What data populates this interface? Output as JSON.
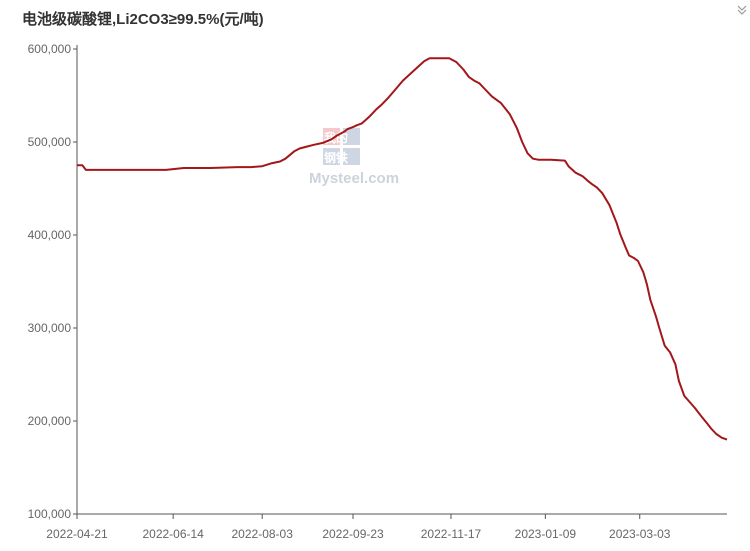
{
  "title": "电池级碳酸锂,Li2CO3≥99.5%(元/吨)",
  "watermark": {
    "line1": "我的",
    "line2": "钢铁",
    "line3": "Mysteel.com"
  },
  "icons": {
    "expand": "chevron-expand-icon"
  },
  "colors": {
    "series": "#a3171b",
    "axis": "#555555",
    "tick_text": "#666666"
  },
  "chart_data": {
    "type": "line",
    "title": "电池级碳酸锂,Li2CO3≥99.5%(元/吨)",
    "ylim": [
      100000,
      600000
    ],
    "xlim": [
      "2022-04-21",
      "2023-04-21"
    ],
    "y_ticks": [
      100000,
      200000,
      300000,
      400000,
      500000,
      600000
    ],
    "y_tick_labels": [
      "100,000",
      "200,000",
      "300,000",
      "400,000",
      "500,000",
      "600,000"
    ],
    "x_ticks": [
      "2022-04-21",
      "2022-06-14",
      "2022-08-03",
      "2022-09-23",
      "2022-11-17",
      "2023-01-09",
      "2023-03-03"
    ],
    "grid": false,
    "series": [
      {
        "x": [
          "2022-04-21",
          "2022-04-24",
          "2022-04-26",
          "2022-05-10",
          "2022-05-30",
          "2022-06-10",
          "2022-06-20",
          "2022-07-05",
          "2022-07-20",
          "2022-07-28",
          "2022-08-03",
          "2022-08-08",
          "2022-08-13",
          "2022-08-16",
          "2022-08-21",
          "2022-08-24",
          "2022-08-28",
          "2022-09-01",
          "2022-09-06",
          "2022-09-11",
          "2022-09-14",
          "2022-09-18",
          "2022-09-20",
          "2022-09-23",
          "2022-09-25",
          "2022-09-28",
          "2022-10-02",
          "2022-10-06",
          "2022-10-09",
          "2022-10-13",
          "2022-10-17",
          "2022-10-21",
          "2022-10-25",
          "2022-10-29",
          "2022-11-02",
          "2022-11-05",
          "2022-11-07",
          "2022-11-12",
          "2022-11-16",
          "2022-11-20",
          "2022-11-24",
          "2022-11-27",
          "2022-11-30",
          "2022-12-03",
          "2022-12-06",
          "2022-12-10",
          "2022-12-15",
          "2022-12-20",
          "2022-12-24",
          "2022-12-27",
          "2022-12-30",
          "2023-01-02",
          "2023-01-05",
          "2023-01-08",
          "2023-01-09",
          "2023-01-12",
          "2023-01-20",
          "2023-01-22",
          "2023-01-26",
          "2023-01-30",
          "2023-02-02",
          "2023-02-04",
          "2023-02-07",
          "2023-02-10",
          "2023-02-14",
          "2023-02-18",
          "2023-02-20",
          "2023-02-23",
          "2023-02-25",
          "2023-02-28",
          "2023-03-02",
          "2023-03-05",
          "2023-03-07",
          "2023-03-09",
          "2023-03-12",
          "2023-03-14",
          "2023-03-17",
          "2023-03-20",
          "2023-03-23",
          "2023-03-25",
          "2023-03-28",
          "2023-04-03",
          "2023-04-07",
          "2023-04-10",
          "2023-04-12",
          "2023-04-15",
          "2023-04-18",
          "2023-04-21"
        ],
        "values": [
          475000,
          475000,
          470000,
          470000,
          470000,
          470000,
          472000,
          472000,
          473000,
          473000,
          474000,
          477000,
          479000,
          482000,
          490000,
          493000,
          495000,
          497000,
          499000,
          503000,
          507000,
          511000,
          514000,
          516000,
          518000,
          520000,
          527000,
          535000,
          540000,
          548000,
          557000,
          566000,
          573000,
          580000,
          587000,
          590000,
          590000,
          590000,
          590000,
          586000,
          578000,
          570000,
          566000,
          563000,
          557000,
          549000,
          542000,
          530000,
          515000,
          500000,
          488000,
          482000,
          481000,
          481000,
          481000,
          481000,
          480000,
          474000,
          467000,
          463000,
          458000,
          455000,
          451000,
          445000,
          432000,
          413000,
          401000,
          387000,
          378000,
          375000,
          372000,
          360000,
          347000,
          330000,
          313000,
          300000,
          281000,
          274000,
          261000,
          243000,
          227000,
          214000,
          204000,
          197000,
          192000,
          186000,
          182000,
          180000
        ]
      }
    ]
  }
}
